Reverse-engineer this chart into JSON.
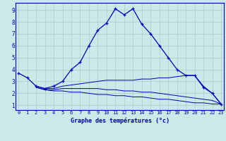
{
  "xlabel": "Graphe des températures (°c)",
  "bg_color": "#cce8e8",
  "line_color": "#0000bb",
  "grid_color": "#aacccc",
  "x_ticks": [
    0,
    1,
    2,
    3,
    4,
    5,
    6,
    7,
    8,
    9,
    10,
    11,
    12,
    13,
    14,
    15,
    16,
    17,
    18,
    19,
    20,
    21,
    22,
    23
  ],
  "y_ticks": [
    1,
    2,
    3,
    4,
    5,
    6,
    7,
    8,
    9
  ],
  "xlim": [
    -0.3,
    23.3
  ],
  "ylim": [
    0.6,
    9.6
  ],
  "series": {
    "main": {
      "x": [
        0,
        1,
        2,
        3,
        4,
        5,
        6,
        7,
        8,
        9,
        10,
        11,
        12,
        13,
        14,
        15,
        16,
        17,
        18,
        19,
        20,
        21,
        22,
        23
      ],
      "y": [
        3.7,
        3.3,
        2.6,
        2.4,
        2.6,
        3.0,
        4.0,
        4.6,
        6.0,
        7.3,
        7.9,
        9.1,
        8.6,
        9.1,
        7.8,
        7.0,
        6.0,
        5.0,
        4.0,
        3.5,
        3.5,
        2.5,
        2.0,
        1.1
      ]
    },
    "flat1": {
      "x": [
        2,
        3,
        4,
        5,
        6,
        7,
        8,
        9,
        10,
        11,
        12,
        13,
        14,
        15,
        16,
        17,
        18,
        19,
        20,
        21,
        22,
        23
      ],
      "y": [
        2.6,
        2.4,
        2.4,
        2.6,
        2.7,
        2.8,
        2.9,
        3.0,
        3.1,
        3.1,
        3.1,
        3.1,
        3.2,
        3.2,
        3.3,
        3.3,
        3.4,
        3.5,
        3.5,
        2.6,
        2.0,
        1.1
      ]
    },
    "flat2": {
      "x": [
        2,
        3,
        4,
        5,
        6,
        7,
        8,
        9,
        10,
        11,
        12,
        13,
        14,
        15,
        16,
        17,
        18,
        19,
        20,
        21,
        22,
        23
      ],
      "y": [
        2.5,
        2.3,
        2.3,
        2.4,
        2.4,
        2.4,
        2.4,
        2.4,
        2.3,
        2.3,
        2.2,
        2.2,
        2.1,
        2.1,
        2.0,
        1.9,
        1.8,
        1.7,
        1.6,
        1.5,
        1.4,
        1.1
      ]
    },
    "flat3": {
      "x": [
        2,
        3,
        4,
        5,
        6,
        7,
        8,
        9,
        10,
        11,
        12,
        13,
        14,
        15,
        16,
        17,
        18,
        19,
        20,
        21,
        22,
        23
      ],
      "y": [
        2.5,
        2.3,
        2.2,
        2.2,
        2.1,
        2.1,
        2.0,
        1.9,
        1.9,
        1.8,
        1.8,
        1.7,
        1.7,
        1.6,
        1.5,
        1.5,
        1.4,
        1.3,
        1.2,
        1.2,
        1.1,
        1.1
      ]
    }
  }
}
